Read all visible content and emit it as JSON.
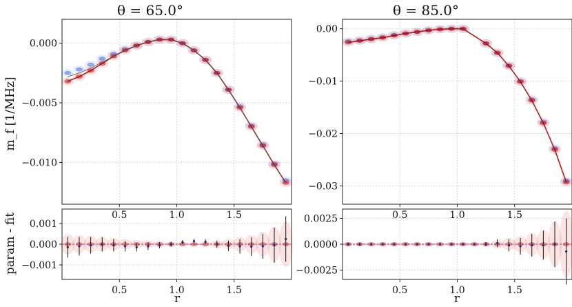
{
  "chart_data": [
    {
      "type": "scatter",
      "title": "θ = 65.0°",
      "ylabel": "m_f [1/MHz]",
      "xlim": [
        0.0,
        2.0
      ],
      "ylim": [
        -0.0135,
        0.002
      ],
      "xticks": [
        0.5,
        1.0,
        1.5
      ],
      "xticklabels": [
        "0.5",
        "1.0",
        "1.5"
      ],
      "yticks": [
        0.0,
        -0.005,
        -0.01
      ],
      "yticklabels": [
        "0.000",
        "−0.005",
        "−0.010"
      ],
      "grid": true,
      "series": [
        {
          "color": "#4169e1",
          "x": [
            0.05,
            0.15,
            0.25,
            0.35,
            0.45,
            0.55,
            0.65,
            0.75,
            0.85,
            0.95,
            1.05,
            1.15,
            1.25,
            1.35,
            1.45,
            1.55,
            1.65,
            1.75,
            1.85,
            1.95
          ],
          "y": [
            -0.0025,
            -0.0022,
            -0.0018,
            -0.0013,
            -0.0009,
            -0.0005,
            -0.0002,
            0.0001,
            0.0003,
            0.0003,
            0.0,
            -0.0006,
            -0.0014,
            -0.0025,
            -0.0039,
            -0.0053,
            -0.0069,
            -0.0085,
            -0.0101,
            -0.0115
          ]
        },
        {
          "color": "#cc0000",
          "x": [
            0.05,
            0.15,
            0.25,
            0.35,
            0.45,
            0.55,
            0.65,
            0.75,
            0.85,
            0.95,
            1.05,
            1.15,
            1.25,
            1.35,
            1.45,
            1.55,
            1.65,
            1.75,
            1.85,
            1.95
          ],
          "y": [
            -0.0032,
            -0.0028,
            -0.0023,
            -0.0017,
            -0.0011,
            -0.0006,
            -0.0002,
            0.0001,
            0.0003,
            0.0003,
            0.0,
            -0.0006,
            -0.0014,
            -0.0025,
            -0.0039,
            -0.0054,
            -0.007,
            -0.0086,
            -0.0102,
            -0.0117
          ]
        },
        {
          "color": "#555555",
          "x": [
            0.05,
            0.15,
            0.25,
            0.35,
            0.45,
            0.55,
            0.65,
            0.75,
            0.85,
            0.95,
            1.05,
            1.15,
            1.25,
            1.35,
            1.45,
            1.55,
            1.65,
            1.75,
            1.85,
            1.95
          ],
          "y": [
            -0.0028,
            -0.0025,
            -0.0021,
            -0.0016,
            -0.0011,
            -0.0006,
            -0.0002,
            0.0001,
            0.0003,
            0.0003,
            0.0,
            -0.0006,
            -0.0014,
            -0.0025,
            -0.0039,
            -0.0054,
            -0.007,
            -0.0086,
            -0.0102,
            -0.0117
          ]
        }
      ]
    },
    {
      "type": "scatter",
      "title": "θ = 85.0°",
      "xlim": [
        0.0,
        2.0
      ],
      "ylim": [
        -0.0335,
        0.0018
      ],
      "xticks": [
        0.5,
        1.0,
        1.5
      ],
      "xticklabels": [
        "0.5",
        "1.0",
        "1.5"
      ],
      "yticks": [
        0.0,
        -0.01,
        -0.02,
        -0.03
      ],
      "yticklabels": [
        "0.00",
        "−0.01",
        "−0.02",
        "−0.03"
      ],
      "grid": true,
      "series": [
        {
          "color": "#4169e1",
          "x": [
            0.05,
            0.15,
            0.25,
            0.35,
            0.45,
            0.55,
            0.65,
            0.75,
            0.85,
            0.95,
            1.05,
            1.25,
            1.35,
            1.45,
            1.55,
            1.65,
            1.75,
            1.85,
            1.95
          ],
          "y": [
            -0.0024,
            -0.0022,
            -0.0019,
            -0.0016,
            -0.0012,
            -0.0009,
            -0.0006,
            -0.0003,
            -0.0001,
            0.0,
            0.0,
            -0.0028,
            -0.0046,
            -0.007,
            -0.01,
            -0.0135,
            -0.0178,
            -0.0228,
            -0.029
          ]
        },
        {
          "color": "#cc0000",
          "x": [
            0.05,
            0.15,
            0.25,
            0.35,
            0.45,
            0.55,
            0.65,
            0.75,
            0.85,
            0.95,
            1.05,
            1.25,
            1.35,
            1.45,
            1.55,
            1.65,
            1.75,
            1.85,
            1.95
          ],
          "y": [
            -0.0026,
            -0.0023,
            -0.002,
            -0.0017,
            -0.0013,
            -0.0009,
            -0.0006,
            -0.0003,
            -0.0001,
            0.0,
            0.0,
            -0.0028,
            -0.0046,
            -0.0071,
            -0.0101,
            -0.0137,
            -0.018,
            -0.0231,
            -0.0293
          ]
        }
      ]
    },
    {
      "type": "scatter",
      "ylabel": "param - fit",
      "xlabel": "r",
      "xlim": [
        0.0,
        2.0
      ],
      "ylim": [
        -0.0017,
        0.0017
      ],
      "xticks": [
        0.5,
        1.0,
        1.5
      ],
      "xticklabels": [
        "0.5",
        "1.0",
        "1.5"
      ],
      "yticks": [
        0.001,
        0.0,
        -0.001
      ],
      "yticklabels": [
        "0.001",
        "0.000",
        "−0.001"
      ],
      "grid": true,
      "residuals": {
        "x": [
          0.05,
          0.15,
          0.25,
          0.35,
          0.45,
          0.55,
          0.65,
          0.75,
          0.85,
          0.95,
          1.05,
          1.15,
          1.25,
          1.35,
          1.45,
          1.55,
          1.65,
          1.75,
          1.85,
          1.95
        ],
        "y": [
          -0.00015,
          -0.0001,
          -5e-05,
          0.0,
          -5e-05,
          -0.0001,
          -0.00015,
          -0.0001,
          -5e-05,
          0.0,
          0.0001,
          0.00015,
          0.00012,
          0.0,
          -8e-05,
          -0.0001,
          -0.00012,
          -0.0001,
          -5e-05,
          0.00025
        ],
        "err": [
          0.0005,
          0.00045,
          0.0004,
          0.00035,
          0.0003,
          0.00025,
          0.0002,
          0.00018,
          0.00015,
          0.00012,
          0.0001,
          0.0001,
          0.00012,
          0.00018,
          0.00025,
          0.00035,
          0.00045,
          0.0006,
          0.00085,
          0.0011
        ]
      }
    },
    {
      "type": "scatter",
      "xlabel": "r",
      "xlim": [
        0.0,
        2.0
      ],
      "ylim": [
        -0.0034,
        0.0034
      ],
      "xticks": [
        0.5,
        1.0,
        1.5
      ],
      "xticklabels": [
        "0.5",
        "1.0",
        "1.5"
      ],
      "yticks": [
        0.0025,
        0.0,
        -0.0025
      ],
      "yticklabels": [
        "0.0025",
        "0.0000",
        "−0.0025"
      ],
      "grid": true,
      "residuals": {
        "x": [
          0.05,
          0.15,
          0.25,
          0.35,
          0.45,
          0.55,
          0.65,
          0.75,
          0.85,
          0.95,
          1.05,
          1.15,
          1.25,
          1.35,
          1.45,
          1.55,
          1.65,
          1.75,
          1.85,
          1.95
        ],
        "y": [
          0.0,
          0.0,
          0.0,
          0.0,
          0.0,
          0.0,
          0.0,
          0.0,
          0.0,
          0.0,
          0.0,
          0.0,
          0.0,
          0.0001,
          -0.0001,
          -0.0002,
          -0.0001,
          -0.0001,
          0.0,
          -0.0007
        ],
        "err": [
          0.00015,
          0.00015,
          0.00012,
          0.0001,
          0.0001,
          0.0001,
          0.0001,
          0.0001,
          0.0001,
          0.0001,
          0.0001,
          0.0001,
          0.0002,
          0.0004,
          0.0006,
          0.0008,
          0.0011,
          0.0014,
          0.0022,
          0.0032
        ]
      }
    }
  ]
}
